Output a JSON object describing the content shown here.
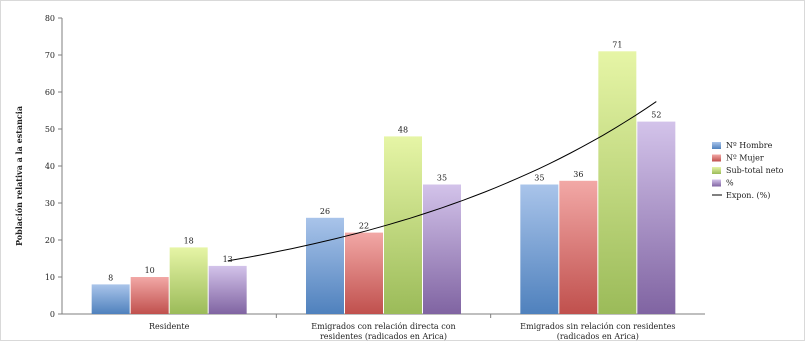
{
  "chart_data": {
    "type": "bar",
    "title": "",
    "ylabel": "Población relativa a la estancia",
    "xlabel": "",
    "ylim": [
      0,
      80
    ],
    "ytick_step": 10,
    "grid": false,
    "legend_position": "right",
    "categories": [
      [
        "Residente"
      ],
      [
        "Emigrados con relación directa con",
        "residentes (radicados en Arica)"
      ],
      [
        "Emigrados sin relación con residentes",
        "(radicados en Arica)"
      ]
    ],
    "series": [
      {
        "name": "Nº Hombre",
        "values": [
          8,
          26,
          35
        ],
        "color": "#4f81bd",
        "color_light": "#a9c4ea"
      },
      {
        "name": "Nº Mujer",
        "values": [
          10,
          22,
          36
        ],
        "color": "#c0504d",
        "color_light": "#f2a8a6"
      },
      {
        "name": "Sub-total neto",
        "values": [
          18,
          48,
          71
        ],
        "color": "#9bbb59",
        "color_light": "#e6f5a6"
      },
      {
        "name": "%",
        "values": [
          13,
          35,
          52
        ],
        "color": "#8064a2",
        "color_light": "#d3c3ea"
      }
    ],
    "trendline": {
      "name": "Expon. (%)",
      "type": "exponential",
      "base_series": "%",
      "color": "#000000"
    }
  }
}
